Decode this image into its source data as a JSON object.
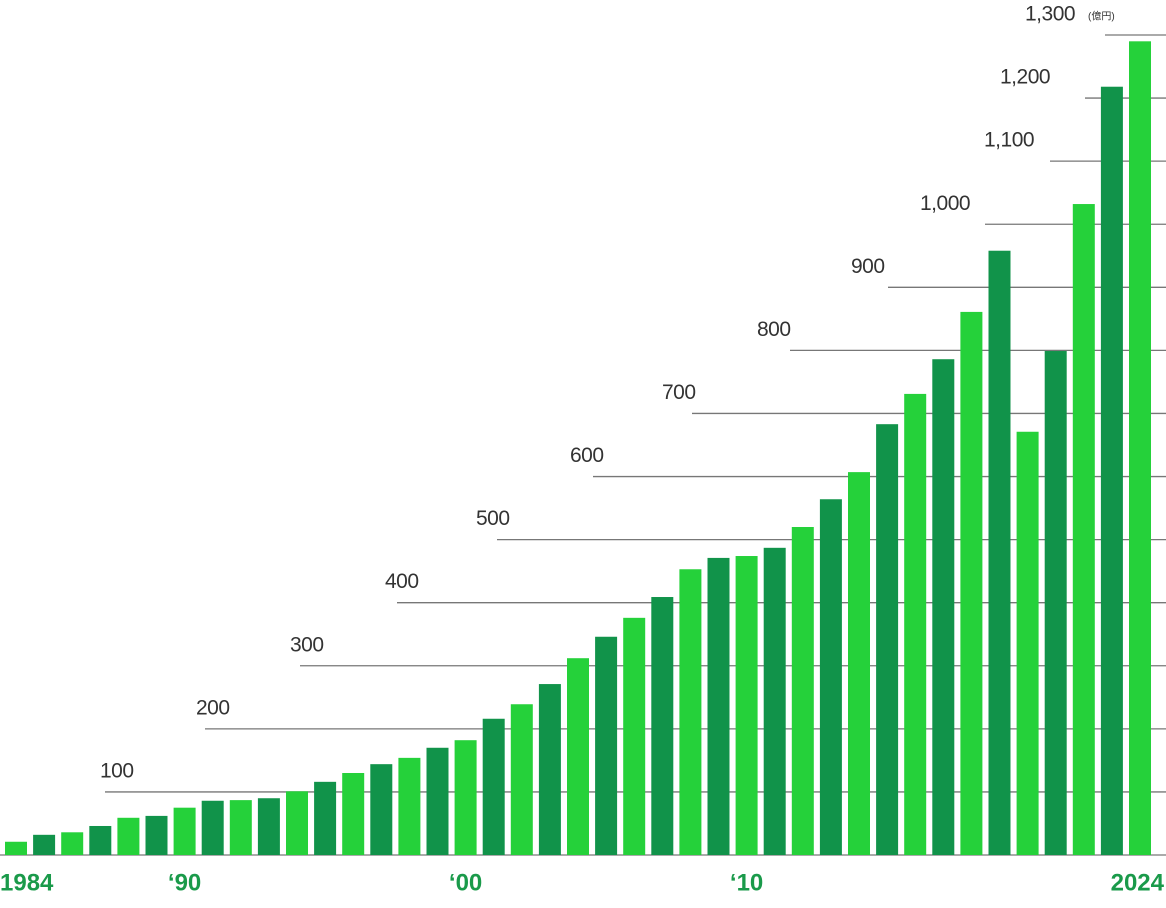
{
  "chart_data": {
    "type": "bar",
    "y_unit": "(億円)",
    "categories": [
      "1984",
      null,
      null,
      null,
      null,
      null,
      "‘90",
      null,
      null,
      null,
      null,
      null,
      null,
      null,
      null,
      null,
      "‘00",
      null,
      null,
      null,
      null,
      null,
      null,
      null,
      null,
      null,
      "‘10",
      null,
      null,
      null,
      null,
      null,
      null,
      null,
      null,
      null,
      null,
      null,
      null,
      null,
      "2024"
    ],
    "values": [
      21,
      32,
      36,
      46,
      59,
      62,
      75,
      86,
      87,
      90,
      101,
      116,
      130,
      144,
      154,
      170,
      182,
      216,
      239,
      271,
      312,
      346,
      376,
      409,
      453,
      471,
      474,
      487,
      520,
      564,
      607,
      683,
      731,
      786,
      861,
      958,
      671,
      799,
      1032,
      1218,
      1290
    ],
    "bar_colors": [
      "#25d13a",
      "#11934a"
    ],
    "ylim": [
      0,
      1300
    ],
    "yticks": [
      100,
      200,
      300,
      400,
      500,
      600,
      700,
      800,
      900,
      {
        "value": 1000,
        "label": "1,000"
      },
      {
        "value": 1100,
        "label": "1,100"
      },
      {
        "value": 1200,
        "label": "1,200"
      },
      {
        "value": 1300,
        "label": "1,300"
      }
    ],
    "grid": true
  }
}
